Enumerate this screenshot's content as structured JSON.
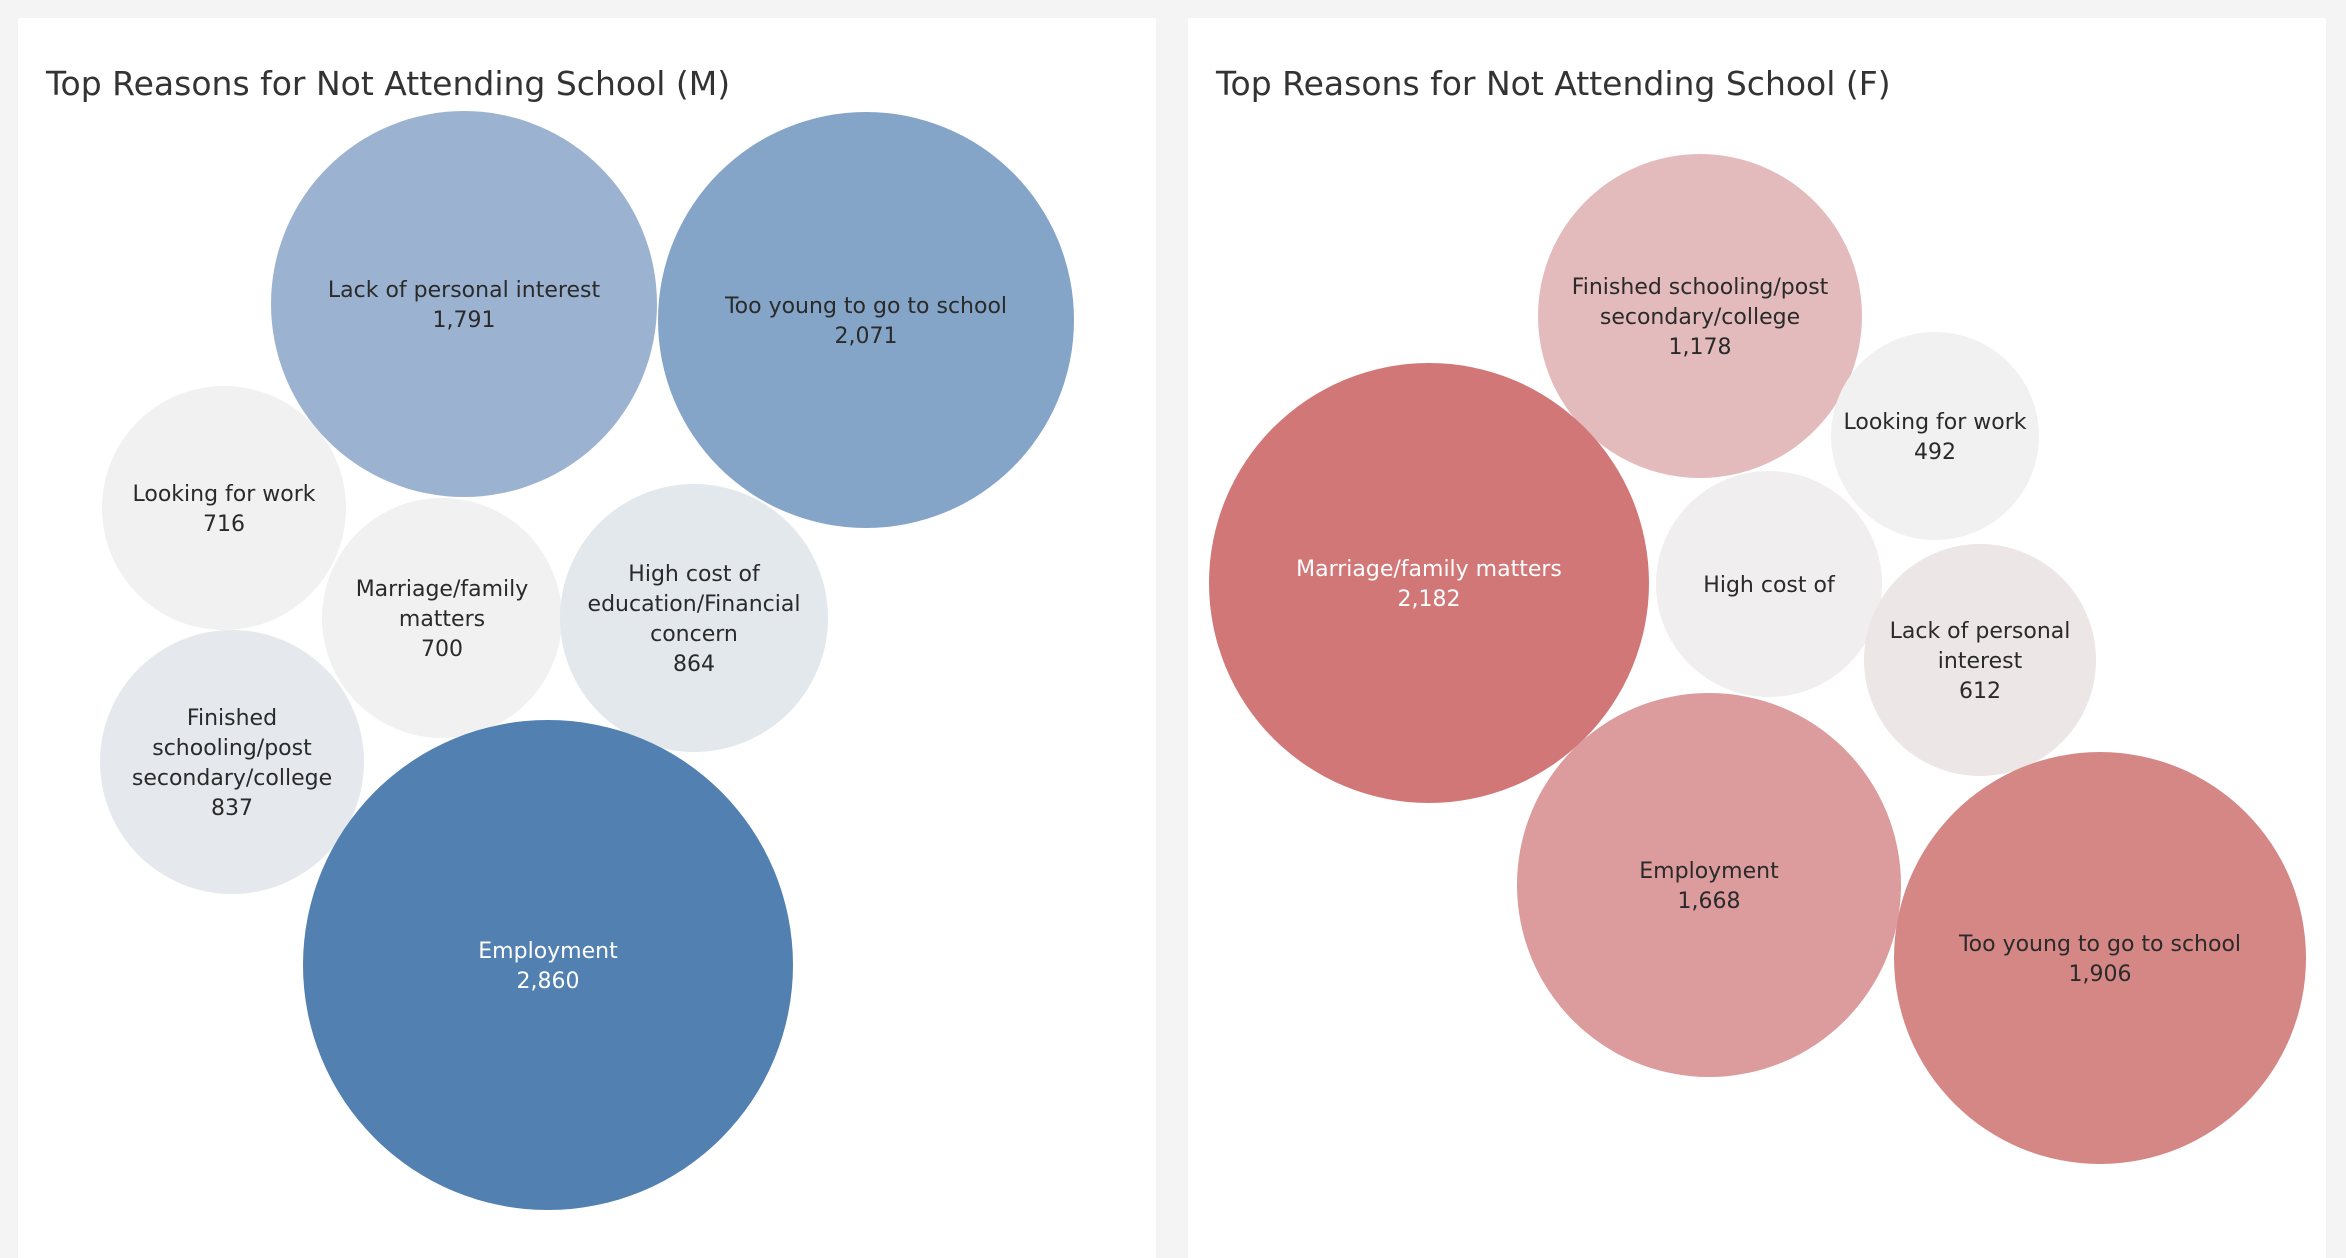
{
  "chart_data": [
    {
      "type": "bubble",
      "title": "Top Reasons for Not Attending School (M)",
      "series": [
        {
          "name": "Lack of personal interest",
          "label_lines": [
            "Lack of personal interest"
          ],
          "value": 1791,
          "value_label": "1,791",
          "color": "#9bb3d1"
        },
        {
          "name": "Too young to go to school",
          "label_lines": [
            "Too young to go to school"
          ],
          "value": 2071,
          "value_label": "2,071",
          "color": "#84a5c8"
        },
        {
          "name": "Looking for work",
          "label_lines": [
            "Looking for work"
          ],
          "value": 716,
          "value_label": "716",
          "color": "#f1f1f2"
        },
        {
          "name": "Marriage/family matters",
          "label_lines": [
            "Marriage/family",
            "matters"
          ],
          "value": 700,
          "value_label": "700",
          "color": "#f1f1f2"
        },
        {
          "name": "High cost of education/Financial concern",
          "label_lines": [
            "High cost of",
            "education/Financial",
            "concern"
          ],
          "value": 864,
          "value_label": "864",
          "color": "#e3e8ed"
        },
        {
          "name": "Finished schooling/post secondary/college",
          "label_lines": [
            "Finished",
            "schooling/post",
            "secondary/college"
          ],
          "value": 837,
          "value_label": "837",
          "color": "#e5e9ee"
        },
        {
          "name": "Employment",
          "label_lines": [
            "Employment"
          ],
          "value": 2860,
          "value_label": "2,860",
          "color": "#5180b1"
        }
      ]
    },
    {
      "type": "bubble",
      "title": "Top Reasons for Not Attending School (F)",
      "series": [
        {
          "name": "Finished schooling/post secondary/college",
          "label_lines": [
            "Finished schooling/post",
            "secondary/college"
          ],
          "value": 1178,
          "value_label": "1,178",
          "color": "#e4bbbc"
        },
        {
          "name": "Looking for work",
          "label_lines": [
            "Looking for work"
          ],
          "value": 492,
          "value_label": "492",
          "color": "#f1f1f2"
        },
        {
          "name": "Marriage/family matters",
          "label_lines": [
            "Marriage/family matters"
          ],
          "value": 2182,
          "value_label": "2,182",
          "color": "#d27777"
        },
        {
          "name": "High cost of",
          "label_lines": [
            "High cost of"
          ],
          "value": null,
          "value_label": "",
          "color": "#f0eeee"
        },
        {
          "name": "Lack of personal interest",
          "label_lines": [
            "Lack of personal",
            "interest"
          ],
          "value": 612,
          "value_label": "612",
          "color": "#ede6e6"
        },
        {
          "name": "Employment",
          "label_lines": [
            "Employment"
          ],
          "value": 1668,
          "value_label": "1,668",
          "color": "#dc9b9c"
        },
        {
          "name": "Too young to go to school",
          "label_lines": [
            "Too young to go to school"
          ],
          "value": 1906,
          "value_label": "1,906",
          "color": "#d58786"
        }
      ]
    }
  ]
}
